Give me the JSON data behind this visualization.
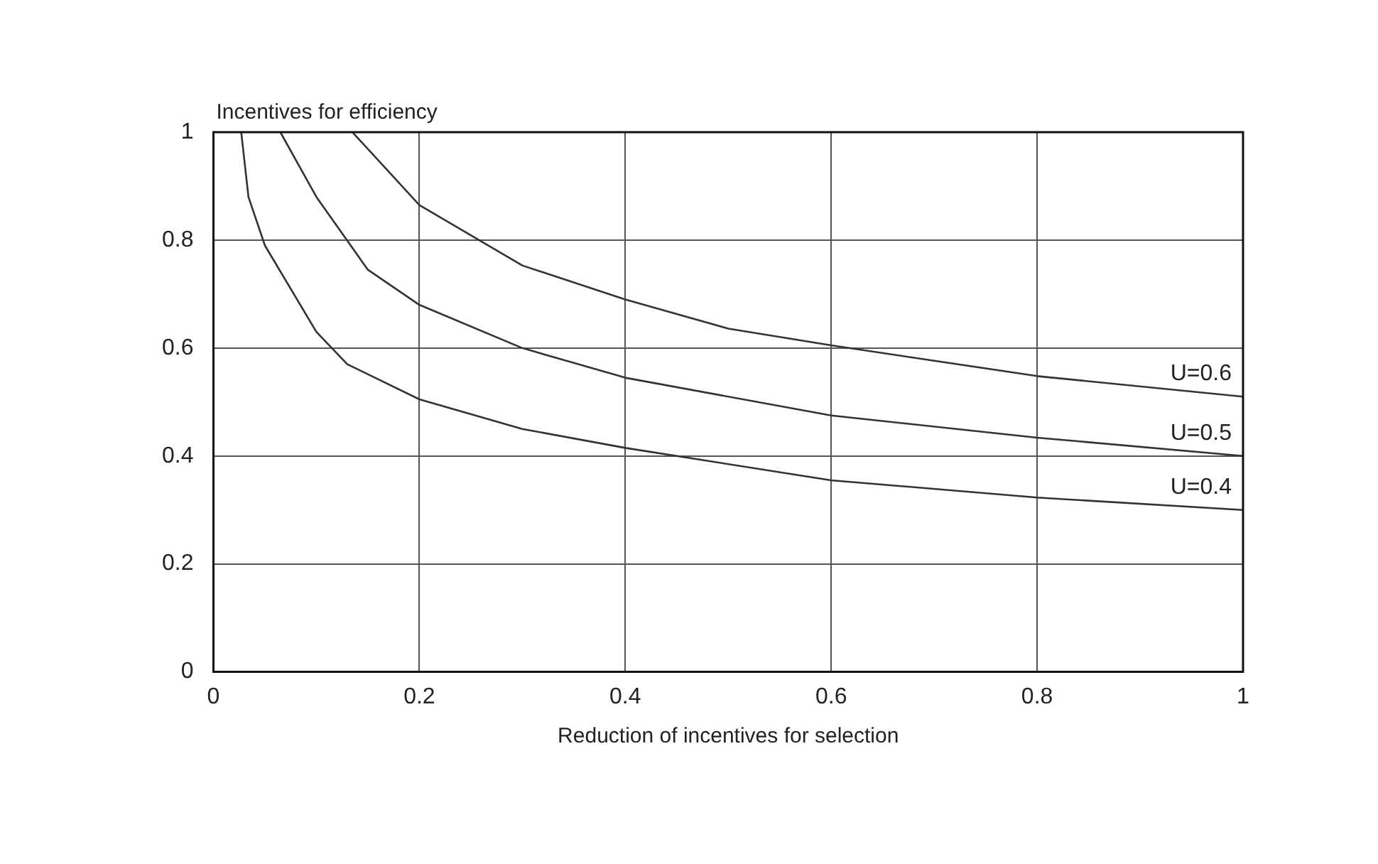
{
  "chart_data": {
    "type": "line",
    "ylabel": "Incentives for efficiency",
    "xlabel": "Reduction of incentives for selection",
    "xlim": [
      0,
      1
    ],
    "xticks": [
      0,
      0.2,
      0.4,
      0.6,
      0.8,
      1
    ],
    "ylim": [
      0,
      1
    ],
    "yticks": [
      0,
      0.2,
      0.4,
      0.6,
      0.8,
      1
    ],
    "grid": true,
    "legend": false,
    "marker": "none",
    "line_style": "solid",
    "series": [
      {
        "name": "U=0.6",
        "color": "#333333",
        "x": [
          0.135,
          0.2,
          0.3,
          0.4,
          0.5,
          0.6,
          0.8,
          1
        ],
        "values": [
          1,
          0.865,
          0.753,
          0.69,
          0.636,
          0.605,
          0.548,
          0.51
        ]
      },
      {
        "name": "U=0.5",
        "color": "#333333",
        "x": [
          0.065,
          0.1,
          0.15,
          0.2,
          0.3,
          0.4,
          0.6,
          0.8,
          1
        ],
        "values": [
          1,
          0.88,
          0.745,
          0.68,
          0.6,
          0.545,
          0.475,
          0.434,
          0.4
        ]
      },
      {
        "name": "U=0.4",
        "color": "#333333",
        "x": [
          0.027,
          0.034,
          0.05,
          0.1,
          0.13,
          0.2,
          0.3,
          0.4,
          0.6,
          0.8,
          1
        ],
        "values": [
          1,
          0.88,
          0.79,
          0.63,
          0.57,
          0.505,
          0.45,
          0.415,
          0.355,
          0.323,
          0.3
        ]
      }
    ]
  }
}
